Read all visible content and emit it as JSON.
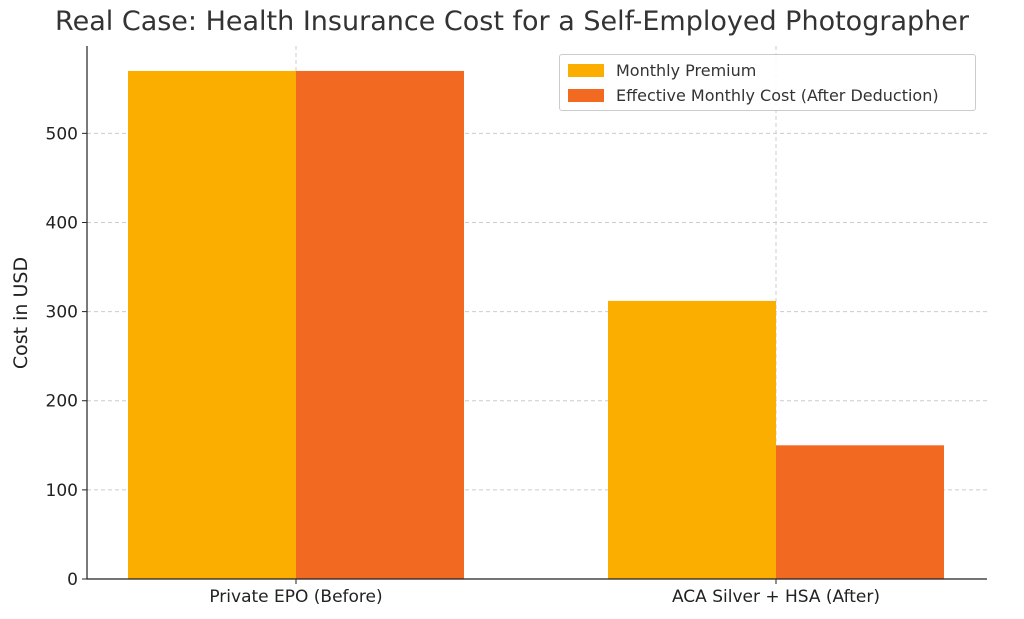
{
  "chart_data": {
    "type": "bar",
    "title": "Real Case: Health Insurance Cost for a Self-Employed Photographer",
    "xlabel": "",
    "ylabel": "Cost in USD",
    "categories": [
      "Private EPO (Before)",
      "ACA Silver + HSA (After)"
    ],
    "series": [
      {
        "name": "Monthly Premium",
        "color": "#FBAE00",
        "values": [
          570,
          312
        ]
      },
      {
        "name": "Effective Monthly Cost (After Deduction)",
        "color": "#F26A21",
        "values": [
          570,
          150
        ]
      }
    ],
    "ylim": [
      0,
      598
    ],
    "yticks": [
      0,
      100,
      200,
      300,
      400,
      500
    ],
    "grid": true,
    "legend_position": "top-right"
  }
}
